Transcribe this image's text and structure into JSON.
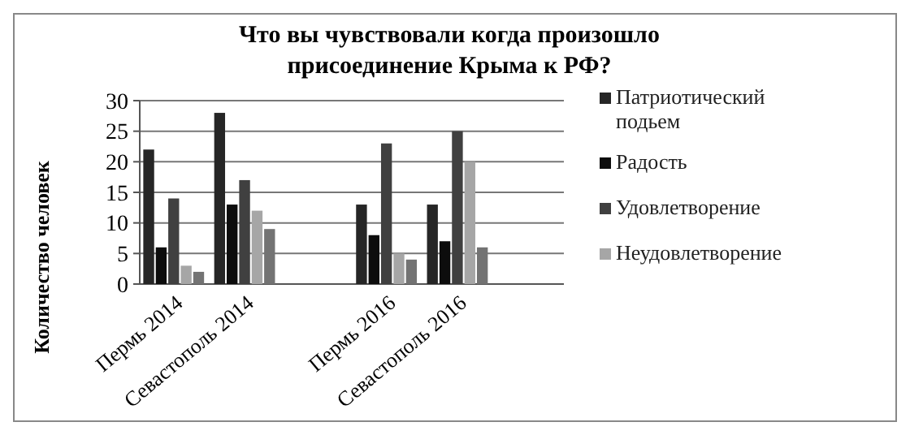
{
  "chart_data": {
    "type": "bar",
    "title": "Что вы чувствовали когда произошло присоединение Крыма к РФ?",
    "ylabel": "Количество человек",
    "categories": [
      "Пермь 2014",
      "Севастополь 2014",
      null,
      "Пермь 2016",
      "Севастополь 2016",
      null
    ],
    "series": [
      {
        "name": "Патриотический подьем",
        "color": "#262626",
        "values": [
          22,
          28,
          null,
          13,
          13,
          null
        ]
      },
      {
        "name": "Радость",
        "color": "#0d0d0d",
        "values": [
          6,
          13,
          null,
          8,
          7,
          null
        ]
      },
      {
        "name": "Удовлетворение",
        "color": "#404040",
        "values": [
          14,
          17,
          null,
          23,
          25,
          null
        ]
      },
      {
        "name": "Неудовлетворение",
        "color": "#a6a6a6",
        "values": [
          3,
          12,
          null,
          5,
          20,
          null
        ]
      },
      {
        "color": "#737373",
        "values": [
          2,
          9,
          null,
          4,
          6,
          null
        ]
      }
    ],
    "ylim": [
      0,
      30
    ],
    "yticks": [
      0,
      5,
      10,
      15,
      20,
      25,
      30
    ],
    "grid": "y",
    "legend": "right"
  }
}
